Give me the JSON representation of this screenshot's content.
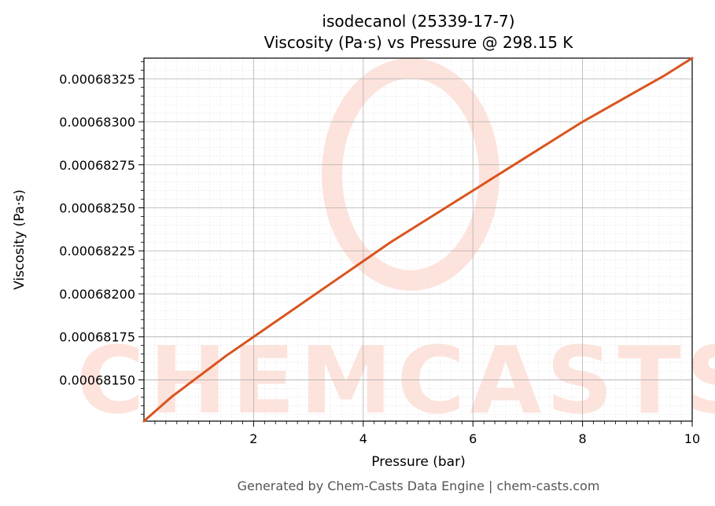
{
  "chart_data": {
    "type": "line",
    "title": "isodecanol (25339-17-7)",
    "subtitle": "Viscosity (Pa·s) vs Pressure @ 298.15 K",
    "xlabel": "Pressure (bar)",
    "ylabel": "Viscosity (Pa·s)",
    "xlim": [
      0.0,
      10.0
    ],
    "ylim": [
      0.00068126,
      0.00068337
    ],
    "x_ticks": [
      2,
      4,
      6,
      8,
      10
    ],
    "x_tick_labels": [
      "2",
      "4",
      "6",
      "8",
      "10"
    ],
    "y_ticks": [
      0.0006815,
      0.00068175,
      0.000682,
      0.00068225,
      0.0006825,
      0.00068275,
      0.000683,
      0.00068325
    ],
    "y_tick_labels": [
      "0.00068150",
      "0.00068175",
      "0.00068200",
      "0.00068225",
      "0.00068250",
      "0.00068275",
      "0.00068300",
      "0.00068325"
    ],
    "grid": true,
    "series": [
      {
        "color": "#d9541e",
        "x": [
          0,
          0.5,
          1,
          1.5,
          2,
          2.5,
          3,
          3.5,
          4,
          4.5,
          5,
          5.5,
          6,
          6.5,
          7,
          7.5,
          8,
          8.5,
          9,
          9.5,
          10
        ],
        "y": [
          0.00068126,
          0.0006814,
          0.00068152,
          0.00068164,
          0.00068175,
          0.00068186,
          0.00068197,
          0.00068208,
          0.00068219,
          0.0006823,
          0.0006824,
          0.0006825,
          0.0006826,
          0.0006827,
          0.0006828,
          0.0006829,
          0.000683,
          0.00068309,
          0.00068318,
          0.00068327,
          0.00068337
        ]
      }
    ]
  },
  "watermark": {
    "text": "CHEMCASTS",
    "color": "#fde3dc"
  },
  "footer": "Generated by Chem-Casts Data Engine | chem-casts.com"
}
